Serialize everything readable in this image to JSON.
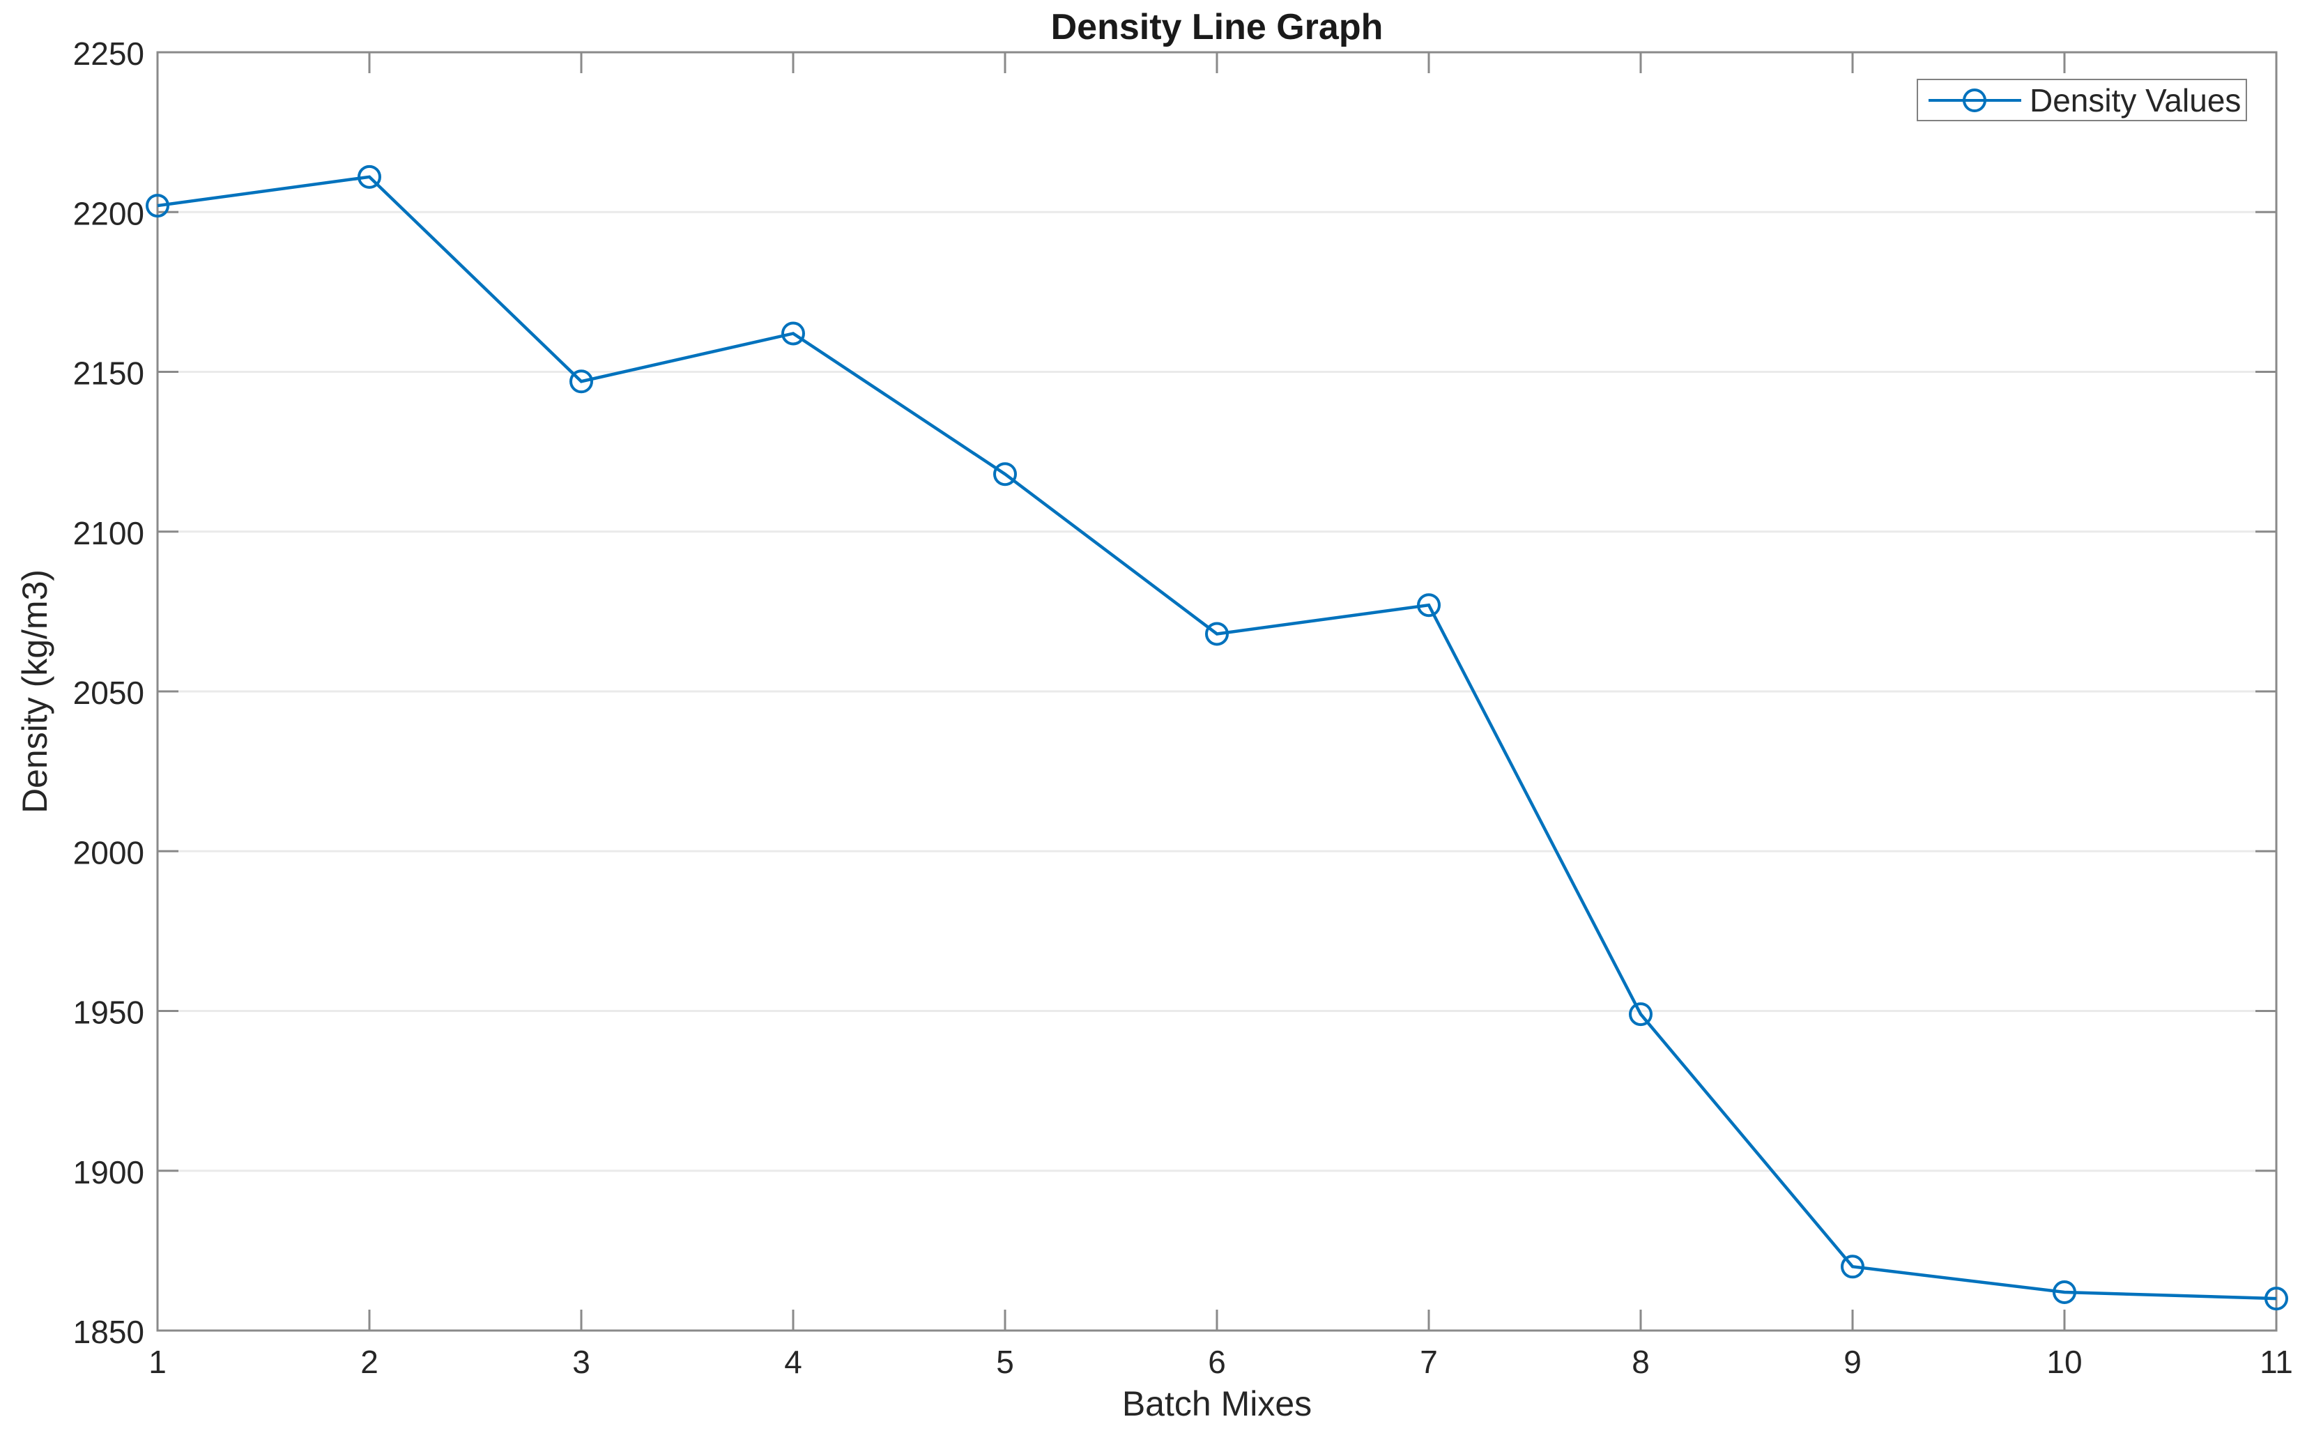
{
  "chart_data": {
    "type": "line",
    "title": "Density Line Graph",
    "xlabel": "Batch Mixes",
    "ylabel": "Density (kg/m3)",
    "x": [
      1,
      2,
      3,
      4,
      5,
      6,
      7,
      8,
      9,
      10,
      11
    ],
    "series": [
      {
        "name": "Density Values",
        "values": [
          2202,
          2211,
          2147,
          2162,
          2118,
          2068,
          2077,
          1949,
          1870,
          1862,
          1860
        ]
      }
    ],
    "xlim": [
      1,
      11
    ],
    "ylim": [
      1850,
      2250
    ],
    "xticks": [
      1,
      2,
      3,
      4,
      5,
      6,
      7,
      8,
      9,
      10,
      11
    ],
    "yticks": [
      1850,
      1900,
      1950,
      2000,
      2050,
      2100,
      2150,
      2200,
      2250
    ],
    "grid": "horizontal",
    "legend_position": "top-right",
    "marker": "open-circle",
    "colors": {
      "line": "#0072BD",
      "axis": "#8a8a8a",
      "grid": "#eaeaea",
      "text": "#262626",
      "background": "#ffffff"
    }
  },
  "legend": {
    "label": "Density Values"
  }
}
